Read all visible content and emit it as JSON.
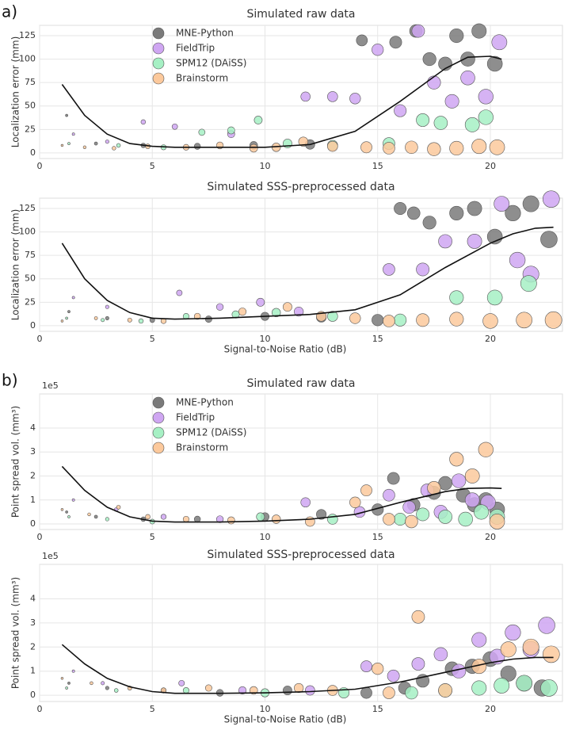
{
  "chart_data": [
    {
      "type": "scatter",
      "panel_label": "a)",
      "title": "Simulated raw data",
      "ylabel": "Localization error (mm)",
      "legend": "top",
      "grid": true,
      "xlim": [
        0,
        23.2
      ],
      "xticks": [
        0,
        5,
        10,
        15,
        20
      ],
      "ylim": [
        -6,
        136
      ],
      "yticks": [
        0,
        25,
        50,
        75,
        100,
        125
      ],
      "series": [
        {
          "name": "MNE-Python",
          "color": "#7a7a7a",
          "x": [
            1.2,
            2.5,
            4.6,
            7,
            9.5,
            12,
            14.3,
            15.8,
            16.7,
            17.3,
            18,
            18.5,
            19,
            19.5,
            20.2
          ],
          "values": [
            40,
            10,
            8,
            7,
            8,
            9,
            120,
            118,
            130,
            100,
            95,
            125,
            100,
            130,
            95
          ]
        },
        {
          "name": "FieldTrip",
          "color": "#cfa6f2",
          "x": [
            1.5,
            3,
            4.6,
            6,
            8.5,
            11.8,
            13,
            14,
            15,
            16,
            16.8,
            17.5,
            18.3,
            19,
            19.8,
            20.4
          ],
          "values": [
            20,
            12,
            33,
            28,
            20,
            60,
            60,
            58,
            110,
            45,
            130,
            75,
            55,
            80,
            60,
            118
          ]
        },
        {
          "name": "SPM12 (DAiSS)",
          "color": "#a6f0c4",
          "x": [
            1.3,
            3.5,
            5.5,
            7.2,
            8.5,
            9.7,
            11,
            13,
            15.5,
            17,
            17.8,
            19.2,
            19.8
          ],
          "values": [
            10,
            8,
            6,
            22,
            24,
            35,
            10,
            8,
            10,
            35,
            32,
            30,
            38
          ]
        },
        {
          "name": "Brainstorm",
          "color": "#fcc99c",
          "x": [
            1,
            2,
            3.3,
            4.8,
            6.5,
            8,
            9.5,
            10.5,
            11.7,
            13,
            14.5,
            15.5,
            16.5,
            17.5,
            18.5,
            19.5,
            20.3
          ],
          "values": [
            8,
            6,
            5,
            7,
            6,
            8,
            5,
            6,
            12,
            7,
            6,
            5,
            6,
            4,
            5,
            7,
            6
          ]
        }
      ],
      "fit": {
        "x": [
          1,
          2,
          3,
          4,
          5,
          6,
          8,
          10,
          12,
          14,
          16,
          18,
          19,
          20,
          20.5
        ],
        "values": [
          73,
          40,
          20,
          10,
          7,
          6,
          6,
          6,
          9,
          23,
          55,
          90,
          102,
          103,
          100
        ]
      }
    },
    {
      "type": "scatter",
      "title": "Simulated SSS-preprocessed data",
      "xlabel": "Signal-to-Noise Ratio (dB)",
      "ylabel": "Localization error (mm)",
      "grid": true,
      "xlim": [
        0,
        23.2
      ],
      "xticks": [
        0,
        5,
        10,
        15,
        20
      ],
      "ylim": [
        -6,
        136
      ],
      "yticks": [
        0,
        25,
        50,
        75,
        100,
        125
      ],
      "series": [
        {
          "color": "#7a7a7a",
          "x": [
            1.3,
            3,
            5,
            7.5,
            10,
            12.5,
            15,
            16,
            16.6,
            17.3,
            18.5,
            19.3,
            20.2,
            21,
            21.8,
            22.6
          ],
          "values": [
            15,
            8,
            6,
            7,
            10,
            9,
            6,
            125,
            120,
            110,
            120,
            125,
            95,
            120,
            130,
            92
          ]
        },
        {
          "color": "#cfa6f2",
          "x": [
            1.5,
            3,
            6.2,
            8,
            9.8,
            11.5,
            15.5,
            17,
            18,
            19.3,
            20.5,
            21.2,
            21.8,
            22.7
          ],
          "values": [
            30,
            20,
            35,
            20,
            25,
            15,
            60,
            60,
            90,
            90,
            130,
            70,
            55,
            135
          ]
        },
        {
          "color": "#a6f0c4",
          "x": [
            1.2,
            2.8,
            4.5,
            6.5,
            8.7,
            10.5,
            13,
            16,
            18.5,
            20.2,
            21.7
          ],
          "values": [
            8,
            6,
            5,
            10,
            12,
            14,
            10,
            6,
            30,
            30,
            45
          ]
        },
        {
          "color": "#fcc99c",
          "x": [
            1,
            2.5,
            4,
            5.5,
            7,
            9,
            11,
            12.5,
            14,
            15.5,
            17,
            18.5,
            20,
            21.5,
            22.8
          ],
          "values": [
            5,
            8,
            6,
            5,
            10,
            15,
            20,
            10,
            8,
            5,
            6,
            7,
            5,
            6,
            6
          ]
        }
      ],
      "fit": {
        "x": [
          1,
          2,
          3,
          4,
          5,
          6,
          8,
          10,
          12,
          14,
          16,
          18,
          20,
          21,
          22,
          22.8
        ],
        "values": [
          88,
          50,
          27,
          14,
          8,
          7,
          8,
          10,
          12,
          17,
          33,
          62,
          88,
          98,
          104,
          105
        ]
      }
    },
    {
      "type": "scatter",
      "panel_label": "b)",
      "title": "Simulated raw data",
      "ylabel": "Point spread vol. (mm³)",
      "offset_label": "1e5",
      "legend": "top",
      "grid": true,
      "xlim": [
        0,
        23.2
      ],
      "xticks": [
        0,
        5,
        10,
        15,
        20
      ],
      "ylim": [
        -0.23,
        5.42
      ],
      "yticks": [
        0,
        1,
        2,
        3,
        4
      ],
      "series": [
        {
          "name": "MNE-Python",
          "color": "#7a7a7a",
          "x": [
            1.2,
            2.5,
            4.6,
            7,
            10,
            12.5,
            15,
            15.7,
            16.6,
            17.5,
            18,
            18.8,
            19.3,
            19.8,
            20.3
          ],
          "values": [
            0.5,
            0.3,
            0.2,
            0.2,
            0.3,
            0.4,
            0.6,
            1.9,
            0.8,
            1.3,
            1.7,
            1.2,
            0.8,
            1.0,
            0.6
          ]
        },
        {
          "name": "FieldTrip",
          "color": "#cfa6f2",
          "x": [
            1.5,
            3.4,
            5.5,
            8,
            11.8,
            14.2,
            15.5,
            16.4,
            17.2,
            17.8,
            18.6,
            19.2,
            19.9
          ],
          "values": [
            1.0,
            0.6,
            0.3,
            0.2,
            0.9,
            0.5,
            1.2,
            0.7,
            1.4,
            0.5,
            1.8,
            1.0,
            0.9
          ]
        },
        {
          "name": "SPM12 (DAiSS)",
          "color": "#a6f0c4",
          "x": [
            1.3,
            3,
            5,
            9.8,
            13,
            16,
            17,
            18,
            18.9,
            19.6,
            20.3
          ],
          "values": [
            0.3,
            0.2,
            0.1,
            0.3,
            0.2,
            0.2,
            0.4,
            0.3,
            0.2,
            0.5,
            0.3
          ]
        },
        {
          "name": "Brainstorm",
          "color": "#fcc99c",
          "x": [
            1,
            2.2,
            3.5,
            4.8,
            6.5,
            8.5,
            10.5,
            12,
            14,
            14.5,
            15.5,
            16.5,
            17.5,
            18.5,
            19.2,
            19.8,
            20.3
          ],
          "values": [
            0.6,
            0.4,
            0.7,
            0.3,
            0.2,
            0.15,
            0.2,
            0.1,
            0.9,
            1.4,
            0.2,
            0.1,
            1.5,
            2.7,
            2.0,
            3.1,
            0.1
          ]
        }
      ],
      "fit": {
        "x": [
          1,
          2,
          3,
          4,
          5,
          6,
          8,
          10,
          12,
          14,
          16,
          18,
          19,
          20,
          20.5
        ],
        "values": [
          2.4,
          1.4,
          0.7,
          0.3,
          0.12,
          0.08,
          0.08,
          0.12,
          0.2,
          0.4,
          0.9,
          1.35,
          1.48,
          1.5,
          1.48
        ]
      }
    },
    {
      "type": "scatter",
      "title": "Simulated SSS-preprocessed data",
      "xlabel": "Signal-to-Noise Ratio (dB)",
      "ylabel": "Point spread vol. (mm³)",
      "offset_label": "1e5",
      "grid": true,
      "xlim": [
        0,
        23.2
      ],
      "xticks": [
        0,
        5,
        10,
        15,
        20
      ],
      "ylim": [
        -0.26,
        5.43
      ],
      "yticks": [
        0,
        1,
        2,
        3,
        4
      ],
      "series": [
        {
          "color": "#7a7a7a",
          "x": [
            1.3,
            3,
            5.5,
            8,
            11,
            14.5,
            16.2,
            17,
            18.3,
            19.2,
            20,
            20.8,
            21.5,
            22.3
          ],
          "values": [
            0.5,
            0.3,
            0.2,
            0.1,
            0.2,
            0.1,
            0.3,
            0.6,
            1.1,
            1.2,
            1.5,
            0.9,
            0.5,
            0.3
          ]
        },
        {
          "color": "#cfa6f2",
          "x": [
            1.5,
            2.8,
            6.3,
            9,
            12,
            14.5,
            15.7,
            16.8,
            17.8,
            18.6,
            19.5,
            20.3,
            21,
            21.8,
            22.5
          ],
          "values": [
            1.0,
            0.5,
            0.5,
            0.2,
            0.2,
            1.2,
            0.8,
            1.3,
            1.7,
            1.0,
            2.3,
            1.6,
            2.6,
            1.9,
            2.9
          ]
        },
        {
          "color": "#a6f0c4",
          "x": [
            1.2,
            3.4,
            6.5,
            10,
            13.5,
            16.5,
            18,
            19.5,
            20.5,
            21.5,
            22.6
          ],
          "values": [
            0.3,
            0.2,
            0.2,
            0.1,
            0.1,
            0.1,
            0.2,
            0.3,
            0.4,
            0.5,
            0.3
          ]
        },
        {
          "color": "#fcc99c",
          "x": [
            1,
            2.3,
            4,
            5.5,
            7.5,
            9.5,
            11.5,
            13,
            15,
            15.5,
            16.8,
            18,
            19.5,
            20.8,
            21.8,
            22.7
          ],
          "values": [
            0.7,
            0.5,
            0.3,
            0.2,
            0.3,
            0.2,
            0.3,
            0.2,
            1.1,
            0.1,
            3.25,
            0.2,
            1.2,
            1.9,
            2.0,
            1.7
          ]
        }
      ],
      "fit": {
        "x": [
          1,
          2,
          3,
          4,
          5,
          6,
          8,
          10,
          12,
          14,
          16,
          18,
          20,
          21,
          22,
          22.8
        ],
        "values": [
          2.1,
          1.3,
          0.7,
          0.35,
          0.15,
          0.08,
          0.08,
          0.1,
          0.15,
          0.25,
          0.55,
          0.95,
          1.35,
          1.5,
          1.57,
          1.57
        ]
      }
    }
  ]
}
